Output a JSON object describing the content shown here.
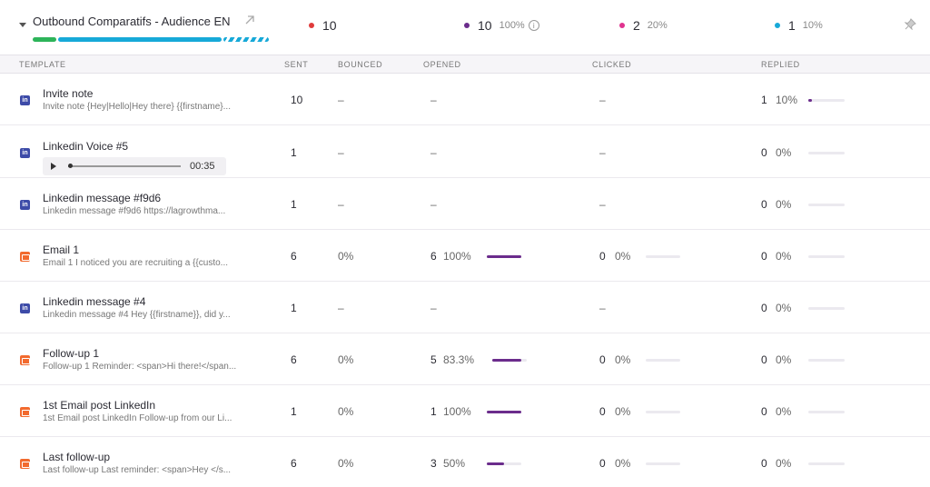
{
  "campaign": {
    "title": "Outbound Comparatifs - Audience EN",
    "progress_done_percent": 10,
    "progress_sent_percent": 76
  },
  "stats": [
    {
      "name": "sent",
      "count": "10",
      "pct": "",
      "color": "#e03b3b"
    },
    {
      "name": "opened",
      "count": "10",
      "pct": "100%",
      "color": "#6b2c8c"
    },
    {
      "name": "clicked",
      "count": "2",
      "pct": "20%",
      "color": "#e0338f"
    },
    {
      "name": "replied",
      "count": "1",
      "pct": "10%",
      "color": "#17a9d8"
    }
  ],
  "columns": {
    "template": "TEMPLATE",
    "sent": "SENT",
    "bounced": "BOUNCED",
    "opened": "OPENED",
    "clicked": "CLICKED",
    "replied": "REPLIED"
  },
  "rows": [
    {
      "type": "linkedin",
      "name": "Invite note",
      "preview": "Invite note {Hey|Hello|Hey there} {{firstname}...",
      "sent": "10",
      "bounced": "–",
      "opened": "–",
      "clicked": "–",
      "replied_count": "1",
      "replied_pct": "10%",
      "replied_fraction": 0.1
    },
    {
      "type": "linkedin",
      "name": "Linkedin Voice #5",
      "audio_time": "00:35",
      "sent": "1",
      "bounced": "–",
      "opened": "–",
      "clicked": "–",
      "replied_count": "0",
      "replied_pct": "0%",
      "replied_fraction": 0
    },
    {
      "type": "linkedin",
      "name": "Linkedin message #f9d6",
      "preview": "Linkedin message #f9d6 https://lagrowthma...",
      "sent": "1",
      "bounced": "–",
      "opened": "–",
      "clicked": "–",
      "replied_count": "0",
      "replied_pct": "0%",
      "replied_fraction": 0
    },
    {
      "type": "email",
      "name": "Email 1",
      "preview": "Email 1 I noticed you are recruiting a {{custo...",
      "sent": "6",
      "bounced": "0%",
      "opened_count": "6",
      "opened_pct": "100%",
      "opened_fraction": 1.0,
      "clicked_count": "0",
      "clicked_pct": "0%",
      "replied_count": "0",
      "replied_pct": "0%",
      "replied_fraction": 0
    },
    {
      "type": "linkedin",
      "name": "Linkedin message #4",
      "preview": "Linkedin message #4 Hey {{firstname}}, did y...",
      "sent": "1",
      "bounced": "–",
      "opened": "–",
      "clicked": "–",
      "replied_count": "0",
      "replied_pct": "0%",
      "replied_fraction": 0
    },
    {
      "type": "email",
      "name": "Follow-up 1",
      "preview": "Follow-up 1 Reminder: <span>Hi there!</span...",
      "sent": "6",
      "bounced": "0%",
      "opened_count": "5",
      "opened_pct": "83.3%",
      "opened_fraction": 0.833,
      "clicked_count": "0",
      "clicked_pct": "0%",
      "replied_count": "0",
      "replied_pct": "0%",
      "replied_fraction": 0
    },
    {
      "type": "email",
      "name": "1st Email post LinkedIn",
      "preview": "1st Email post LinkedIn Follow-up from our Li...",
      "sent": "1",
      "bounced": "0%",
      "opened_count": "1",
      "opened_pct": "100%",
      "opened_fraction": 1.0,
      "clicked_count": "0",
      "clicked_pct": "0%",
      "replied_count": "0",
      "replied_pct": "0%",
      "replied_fraction": 0
    },
    {
      "type": "email",
      "name": "Last follow-up",
      "preview": "Last follow-up Last reminder: <span>Hey </s...",
      "sent": "6",
      "bounced": "0%",
      "opened_count": "3",
      "opened_pct": "50%",
      "opened_fraction": 0.5,
      "clicked_count": "0",
      "clicked_pct": "0%",
      "replied_count": "0",
      "replied_pct": "0%",
      "replied_fraction": 0
    }
  ],
  "icons": {
    "caret": "caret-down-icon",
    "external": "external-link-icon",
    "info": "info-icon",
    "pin": "pin-icon",
    "linkedin": "linkedin-icon",
    "email": "email-icon",
    "play": "play-icon"
  }
}
